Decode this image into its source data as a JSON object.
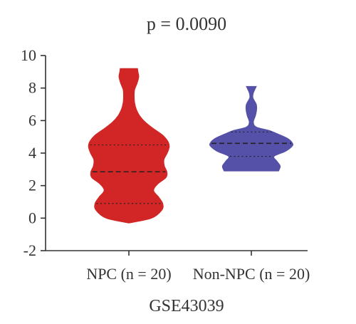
{
  "chart_data": {
    "type": "violin",
    "title": "p = 0.0090",
    "xlabel": "GSE43039",
    "ylabel": "",
    "ylim": [
      -2,
      10
    ],
    "yticks": [
      -2,
      0,
      2,
      4,
      6,
      8,
      10
    ],
    "grid": false,
    "groups": [
      {
        "name": "NPC (n = 20)",
        "color": "#d22626",
        "n": 20,
        "min": -0.3,
        "max": 9.2,
        "q1": 0.9,
        "median": 2.85,
        "q3": 4.5,
        "profile": [
          [
            -0.3,
            0.0
          ],
          [
            0.0,
            0.55
          ],
          [
            0.5,
            0.8
          ],
          [
            0.9,
            0.82
          ],
          [
            1.3,
            0.72
          ],
          [
            1.7,
            0.6
          ],
          [
            2.1,
            0.7
          ],
          [
            2.5,
            0.9
          ],
          [
            2.85,
            0.92
          ],
          [
            3.2,
            0.86
          ],
          [
            3.6,
            0.85
          ],
          [
            4.0,
            0.93
          ],
          [
            4.4,
            0.98
          ],
          [
            4.7,
            0.95
          ],
          [
            5.1,
            0.82
          ],
          [
            5.5,
            0.6
          ],
          [
            5.9,
            0.4
          ],
          [
            6.3,
            0.26
          ],
          [
            6.7,
            0.18
          ],
          [
            7.1,
            0.14
          ],
          [
            7.5,
            0.13
          ],
          [
            7.9,
            0.14
          ],
          [
            8.3,
            0.2
          ],
          [
            8.7,
            0.24
          ],
          [
            9.0,
            0.22
          ],
          [
            9.2,
            0.21
          ]
        ]
      },
      {
        "name": "Non-NPC (n = 20)",
        "color": "#5551a8",
        "n": 20,
        "min": 2.9,
        "max": 8.1,
        "q1": 3.8,
        "median": 4.6,
        "q3": 5.3,
        "profile": [
          [
            2.9,
            0.66
          ],
          [
            3.2,
            0.7
          ],
          [
            3.5,
            0.62
          ],
          [
            3.8,
            0.55
          ],
          [
            4.1,
            0.82
          ],
          [
            4.4,
            0.98
          ],
          [
            4.6,
            1.0
          ],
          [
            4.9,
            0.88
          ],
          [
            5.2,
            0.62
          ],
          [
            5.4,
            0.42
          ],
          [
            5.6,
            0.12
          ],
          [
            5.9,
            0.05
          ],
          [
            6.3,
            0.1
          ],
          [
            6.7,
            0.13
          ],
          [
            7.0,
            0.12
          ],
          [
            7.4,
            0.04
          ],
          [
            7.7,
            0.05
          ],
          [
            8.1,
            0.12
          ]
        ]
      }
    ]
  }
}
